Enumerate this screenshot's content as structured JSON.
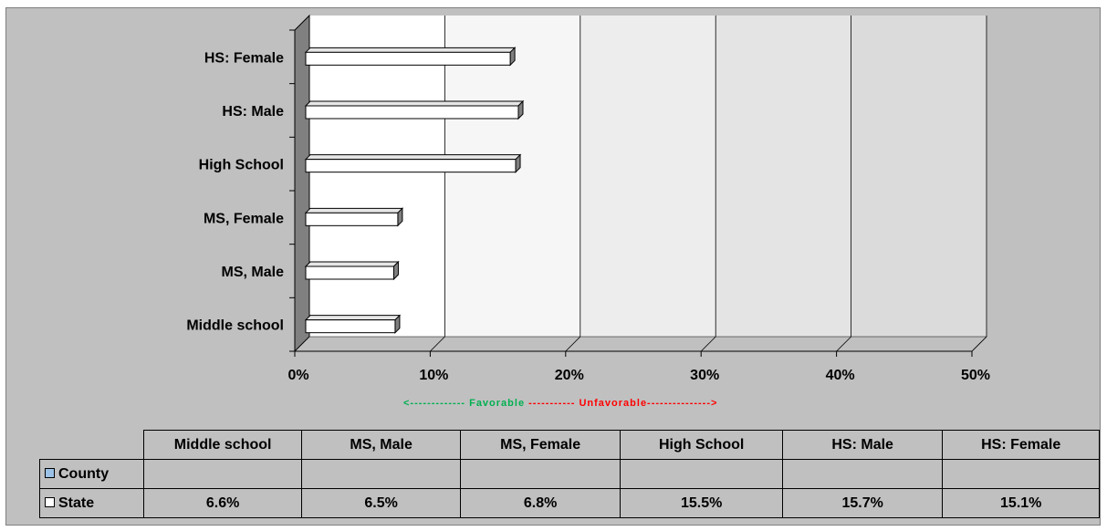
{
  "chart_data": {
    "type": "bar",
    "orientation": "horizontal",
    "categories": [
      "Middle school",
      "MS, Male",
      "MS, Female",
      "High School",
      "HS: Male",
      "HS: Female"
    ],
    "series": [
      {
        "name": "County",
        "values": [
          null,
          null,
          null,
          null,
          null,
          null
        ],
        "color": "#9bc2e6"
      },
      {
        "name": "State",
        "values": [
          6.6,
          6.5,
          6.8,
          15.5,
          15.7,
          15.1
        ],
        "color": "#ffffff"
      }
    ],
    "xlim": [
      0,
      50
    ],
    "x_ticks": [
      "0%",
      "10%",
      "20%",
      "30%",
      "40%",
      "50%"
    ],
    "grid": true,
    "annotation": {
      "favorable": "<------------- Favorable",
      "unfavorable": " ----------- Unfavorable--------------->",
      "favorable_color": "#00b050",
      "unfavorable_color": "#ff0000"
    },
    "table": {
      "header": [
        "Middle school",
        "MS, Male",
        "MS, Female",
        "High School",
        "HS: Male",
        "HS: Female"
      ],
      "rows": [
        {
          "label": "County",
          "cells": [
            "",
            "",
            "",
            "",
            "",
            ""
          ]
        },
        {
          "label": "State",
          "cells": [
            "6.6%",
            "6.5%",
            "6.8%",
            "15.5%",
            "15.7%",
            "15.1%"
          ]
        }
      ]
    }
  }
}
